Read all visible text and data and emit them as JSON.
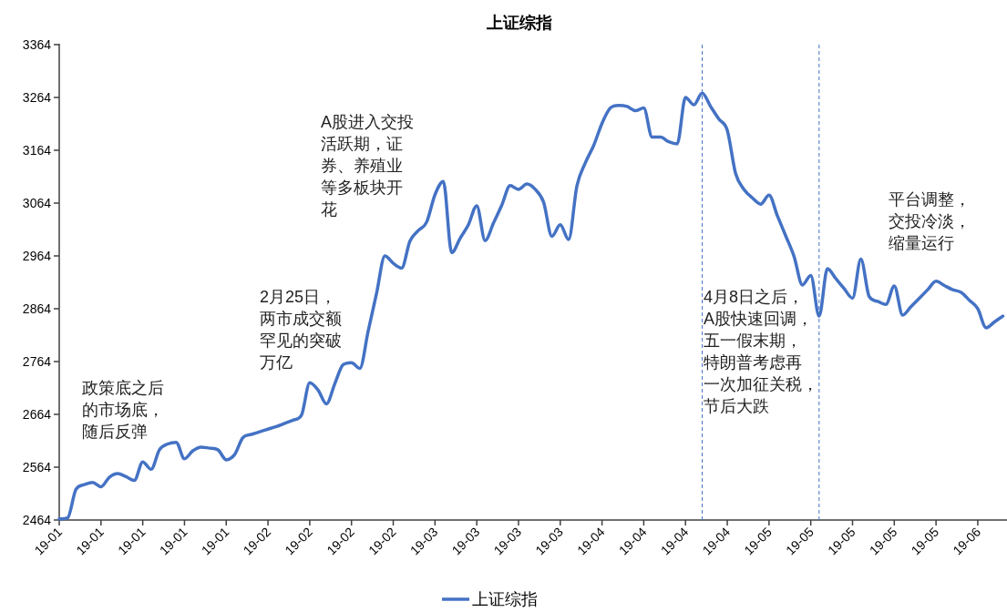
{
  "chart_data": {
    "type": "line",
    "title": "上证综指",
    "categories": [
      "19-01",
      null,
      null,
      null,
      null,
      "19-01",
      null,
      null,
      null,
      null,
      "19-01",
      null,
      null,
      null,
      null,
      "19-01",
      null,
      null,
      null,
      null,
      "19-01",
      null,
      null,
      null,
      null,
      "19-02",
      null,
      null,
      null,
      null,
      "19-02",
      null,
      null,
      null,
      null,
      "19-02",
      null,
      null,
      null,
      null,
      "19-02",
      null,
      null,
      null,
      null,
      "19-03",
      null,
      null,
      null,
      null,
      "19-03",
      null,
      null,
      null,
      null,
      "19-03",
      null,
      null,
      null,
      null,
      "19-03",
      null,
      null,
      null,
      null,
      "19-04",
      null,
      null,
      null,
      null,
      "19-04",
      null,
      null,
      null,
      null,
      "19-04",
      null,
      null,
      null,
      null,
      "19-04",
      null,
      null,
      null,
      null,
      "19-05",
      null,
      null,
      null,
      null,
      "19-05",
      null,
      null,
      null,
      null,
      "19-05",
      null,
      null,
      null,
      null,
      "19-05",
      null,
      null,
      null,
      null,
      "19-05",
      null,
      null,
      null,
      null,
      "19-06",
      null,
      null,
      null
    ],
    "series": [
      {
        "name": "上证综指",
        "color": "#4472c4",
        "values": [
          2466,
          2468,
          2522,
          2531,
          2535,
          2527,
          2545,
          2552,
          2546,
          2539,
          2574,
          2560,
          2597,
          2608,
          2611,
          2580,
          2595,
          2602,
          2600,
          2597,
          2578,
          2588,
          2620,
          2626,
          2631,
          2636,
          2641,
          2647,
          2653,
          2662,
          2724,
          2710,
          2684,
          2722,
          2758,
          2762,
          2751,
          2822,
          2893,
          2964,
          2950,
          2941,
          2992,
          3012,
          3028,
          3080,
          3105,
          2970,
          2997,
          3023,
          3059,
          2993,
          3026,
          3060,
          3097,
          3090,
          3100,
          3090,
          3066,
          3001,
          3023,
          2995,
          3097,
          3140,
          3173,
          3215,
          3244,
          3249,
          3247,
          3239,
          3244,
          3189,
          3189,
          3180,
          3176,
          3264,
          3250,
          3272,
          3247,
          3223,
          3202,
          3120,
          3090,
          3074,
          3062,
          3079,
          3040,
          3002,
          2963,
          2909,
          2927,
          2850,
          2940,
          2921,
          2902,
          2884,
          2958,
          2887,
          2878,
          2872,
          2907,
          2852,
          2868,
          2884,
          2900,
          2916,
          2908,
          2900,
          2895,
          2880,
          2864,
          2828,
          2839,
          2850
        ]
      }
    ],
    "ylim": [
      2464,
      3364
    ],
    "yticks": [
      2464,
      2564,
      2664,
      2764,
      2864,
      2964,
      3064,
      3164,
      3264,
      3364
    ],
    "annotations": [
      "政策底之后的市场底，随后反弹",
      "2月25日，两市成交额罕见的突破万亿",
      "A股进入交投活跃期，证券、养殖业等多板块开花",
      "4月8日之后，A股快速回调，五一假末期，特朗普考虑再一次加征关税，节后大跌",
      "平台调整，交投冷淡，缩量运行"
    ],
    "legend": "bottom",
    "marker": "none",
    "line_style": "solid"
  }
}
